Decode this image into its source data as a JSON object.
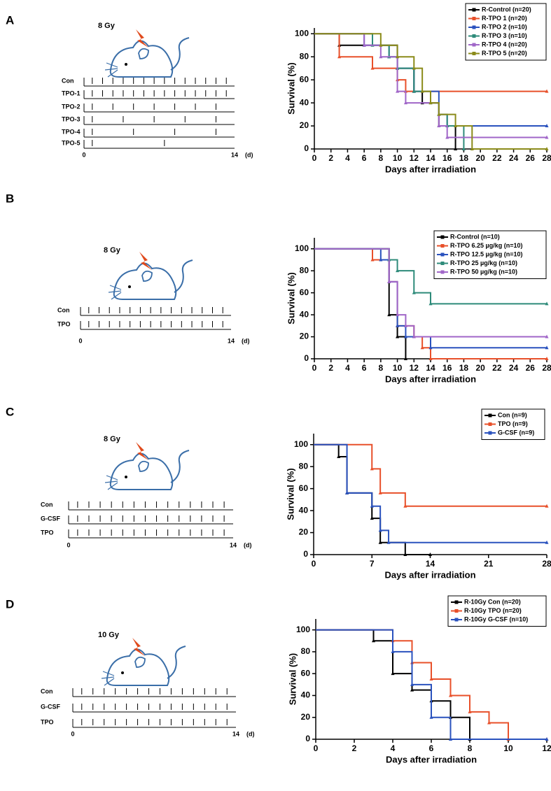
{
  "panel_labels": [
    "A",
    "B",
    "C",
    "D"
  ],
  "schematics": [
    {
      "dose": "8 Gy",
      "rows": [
        "Con",
        "TPO-1",
        "TPO-2",
        "TPO-3",
        "TPO-4",
        "TPO-5"
      ],
      "start": "0",
      "end": "14",
      "unit": "(d)"
    },
    {
      "dose": "8 Gy",
      "rows": [
        "Con",
        "TPO"
      ],
      "start": "0",
      "end": "14",
      "unit": "(d)"
    },
    {
      "dose": "8 Gy",
      "rows": [
        "Con",
        "G-CSF",
        "TPO"
      ],
      "start": "0",
      "end": "14",
      "unit": "(d)"
    },
    {
      "dose": "10 Gy",
      "rows": [
        "Con",
        "G-CSF",
        "TPO"
      ],
      "start": "0",
      "end": "14",
      "unit": "(d)"
    }
  ],
  "chart_data": [
    {
      "type": "step",
      "x_label": "Days after irradiation",
      "y_label": "Survival (%)",
      "xlim": [
        0,
        28
      ],
      "xticks": [
        0,
        2,
        4,
        6,
        8,
        10,
        12,
        14,
        16,
        18,
        20,
        22,
        24,
        26,
        28
      ],
      "ylim": [
        0,
        105
      ],
      "yticks": [
        0,
        20,
        40,
        60,
        80,
        100
      ],
      "legend": "upper right",
      "series": [
        {
          "name": "R-Control (n=20)",
          "color": "#000000",
          "x": [
            0,
            3,
            10,
            12,
            13,
            15,
            17
          ],
          "values": [
            100,
            90,
            70,
            50,
            40,
            20,
            0
          ]
        },
        {
          "name": "R-TPO 1 (n=20)",
          "color": "#e8502a",
          "x": [
            0,
            3,
            7,
            10,
            11,
            28
          ],
          "values": [
            100,
            80,
            70,
            60,
            50,
            50
          ]
        },
        {
          "name": "R-TPO 2 (n=10)",
          "color": "#2a52be",
          "x": [
            0,
            6,
            9,
            10,
            12,
            15,
            16,
            28
          ],
          "values": [
            100,
            90,
            80,
            70,
            50,
            30,
            20,
            20
          ]
        },
        {
          "name": "R-TPO 3 (n=10)",
          "color": "#2e8b7a",
          "x": [
            0,
            7,
            9,
            10,
            12,
            14,
            15,
            16,
            18
          ],
          "values": [
            100,
            90,
            80,
            70,
            50,
            40,
            30,
            20,
            0
          ]
        },
        {
          "name": "R-TPO 4 (n=20)",
          "color": "#a066c8",
          "x": [
            0,
            6,
            8,
            10,
            11,
            15,
            16,
            28
          ],
          "values": [
            100,
            90,
            80,
            50,
            40,
            20,
            10,
            10
          ]
        },
        {
          "name": "R-TPO 5 (n=20)",
          "color": "#8b8b1a",
          "x": [
            0,
            8,
            10,
            12,
            13,
            14,
            15,
            17,
            19,
            28
          ],
          "values": [
            100,
            90,
            80,
            70,
            50,
            40,
            30,
            20,
            0,
            0
          ]
        }
      ]
    },
    {
      "type": "step",
      "x_label": "Days after irradiation",
      "y_label": "Survival (%)",
      "xlim": [
        0,
        28
      ],
      "xticks": [
        0,
        2,
        4,
        6,
        8,
        10,
        12,
        14,
        16,
        18,
        20,
        22,
        24,
        26,
        28
      ],
      "ylim": [
        0,
        110
      ],
      "yticks": [
        0,
        20,
        40,
        60,
        80,
        100
      ],
      "legend": "upper right",
      "series": [
        {
          "name": "R-Control (n=10)",
          "color": "#000000",
          "x": [
            0,
            9,
            10,
            11
          ],
          "values": [
            100,
            40,
            20,
            0
          ]
        },
        {
          "name": "R-TPO 6.25 µg/kg (n=10)",
          "color": "#e8502a",
          "x": [
            0,
            7,
            9,
            10,
            12,
            13,
            14,
            28
          ],
          "values": [
            100,
            90,
            70,
            30,
            20,
            10,
            0,
            0
          ]
        },
        {
          "name": "R-TPO 12.5 µg/kg (n=10)",
          "color": "#2a52be",
          "x": [
            0,
            8,
            9,
            10,
            11,
            14,
            28
          ],
          "values": [
            100,
            90,
            70,
            30,
            20,
            10,
            10
          ]
        },
        {
          "name": "R-TPO 25 µg/kg (n=10)",
          "color": "#2e8b7a",
          "x": [
            0,
            9,
            10,
            12,
            14,
            28
          ],
          "values": [
            100,
            90,
            80,
            60,
            50,
            50
          ]
        },
        {
          "name": "R-TPO 50 µg/kg (n=10)",
          "color": "#a066c8",
          "x": [
            0,
            9,
            10,
            11,
            12,
            28
          ],
          "values": [
            100,
            70,
            40,
            30,
            20,
            20
          ]
        }
      ]
    },
    {
      "type": "step",
      "x_label": "Days after irradiation",
      "y_label": "Survival (%)",
      "xlim": [
        0,
        28
      ],
      "xticks": [
        0,
        7,
        14,
        21,
        28
      ],
      "ylim": [
        0,
        110
      ],
      "yticks": [
        0,
        20,
        40,
        60,
        80,
        100
      ],
      "legend": "upper right",
      "series": [
        {
          "name": "Con (n=9)",
          "color": "#000000",
          "x": [
            0,
            3,
            4,
            7,
            8,
            11,
            14
          ],
          "values": [
            100,
            89,
            56,
            33,
            11,
            0,
            0
          ]
        },
        {
          "name": "TPO (n=9)",
          "color": "#e8502a",
          "x": [
            0,
            7,
            8,
            11,
            28
          ],
          "values": [
            100,
            78,
            56,
            44,
            44
          ]
        },
        {
          "name": "G-CSF (n=9)",
          "color": "#2a52be",
          "x": [
            0,
            4,
            7,
            8,
            9,
            28
          ],
          "values": [
            100,
            56,
            44,
            22,
            11,
            11
          ]
        }
      ]
    },
    {
      "type": "step",
      "x_label": "Days after irradiation",
      "y_label": "Survival (%)",
      "xlim": [
        0,
        12
      ],
      "xticks": [
        0,
        2,
        4,
        6,
        8,
        10,
        12
      ],
      "ylim": [
        0,
        110
      ],
      "yticks": [
        0,
        20,
        40,
        60,
        80,
        100
      ],
      "legend": "upper right",
      "series": [
        {
          "name": "R-10Gy Con (n=20)",
          "color": "#000000",
          "x": [
            0,
            3,
            4,
            5,
            6,
            7,
            8
          ],
          "values": [
            100,
            90,
            60,
            45,
            35,
            20,
            0
          ]
        },
        {
          "name": "R-10Gy TPO (n=20)",
          "color": "#e8502a",
          "x": [
            0,
            4,
            5,
            6,
            7,
            8,
            9,
            10,
            12
          ],
          "values": [
            100,
            90,
            70,
            55,
            40,
            25,
            15,
            0,
            0
          ]
        },
        {
          "name": "R-10Gy G-CSF (n=10)",
          "color": "#2a52be",
          "x": [
            0,
            4,
            5,
            6,
            7,
            12
          ],
          "values": [
            100,
            80,
            50,
            20,
            0,
            0
          ]
        }
      ]
    }
  ]
}
